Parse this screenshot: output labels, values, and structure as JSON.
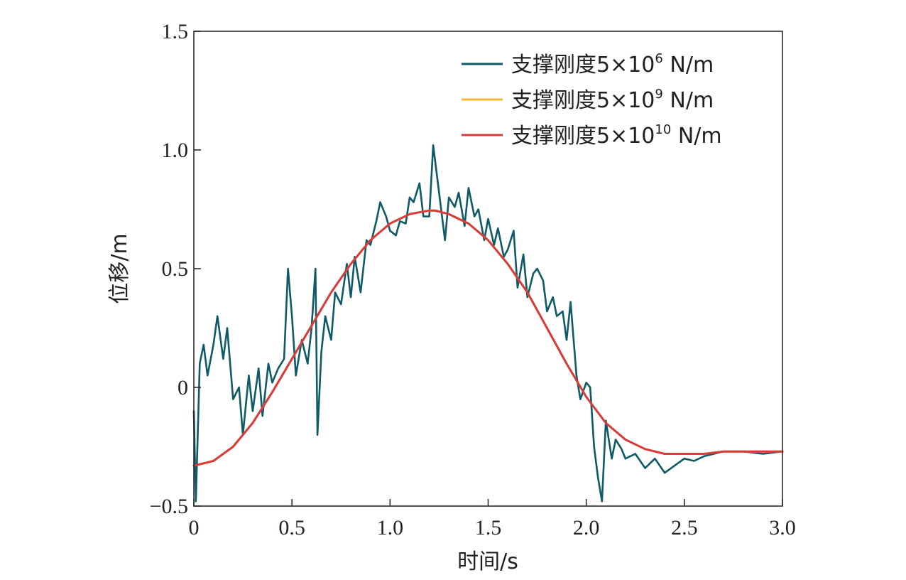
{
  "chart_data": {
    "type": "line",
    "xlabel": "时间/s",
    "ylabel": "位移/m",
    "xlim": [
      0,
      3.0
    ],
    "ylim": [
      -0.5,
      1.5
    ],
    "x_ticks": [
      0,
      0.5,
      1.0,
      1.5,
      2.0,
      2.5,
      3.0
    ],
    "x_tick_labels": [
      "0",
      "0.5",
      "1.0",
      "1.5",
      "2.0",
      "2.5",
      "3.0"
    ],
    "y_ticks": [
      -0.5,
      0,
      0.5,
      1.0,
      1.5
    ],
    "y_tick_labels": [
      "−0.5",
      "0",
      "0.5",
      "1.0",
      "1.5"
    ],
    "grid": false,
    "legend_position": "top-right",
    "series": [
      {
        "name_prefix": "支撑刚度5×10",
        "exponent": "6",
        "name_suffix": " N/m",
        "color": "#0e5a66",
        "x": [
          0,
          0.01,
          0.02,
          0.03,
          0.05,
          0.07,
          0.1,
          0.12,
          0.15,
          0.17,
          0.2,
          0.23,
          0.25,
          0.28,
          0.3,
          0.33,
          0.35,
          0.38,
          0.4,
          0.43,
          0.46,
          0.48,
          0.5,
          0.52,
          0.55,
          0.58,
          0.6,
          0.62,
          0.63,
          0.65,
          0.67,
          0.7,
          0.72,
          0.75,
          0.78,
          0.8,
          0.82,
          0.85,
          0.88,
          0.9,
          0.93,
          0.95,
          0.98,
          1.0,
          1.03,
          1.05,
          1.08,
          1.1,
          1.12,
          1.15,
          1.17,
          1.2,
          1.22,
          1.25,
          1.28,
          1.3,
          1.33,
          1.35,
          1.38,
          1.4,
          1.43,
          1.45,
          1.48,
          1.5,
          1.53,
          1.55,
          1.58,
          1.6,
          1.63,
          1.65,
          1.68,
          1.7,
          1.73,
          1.75,
          1.78,
          1.8,
          1.83,
          1.85,
          1.88,
          1.9,
          1.92,
          1.95,
          1.97,
          2.0,
          2.02,
          2.04,
          2.06,
          2.08,
          2.1,
          2.13,
          2.15,
          2.18,
          2.2,
          2.25,
          2.3,
          2.35,
          2.4,
          2.45,
          2.5,
          2.55,
          2.6,
          2.7,
          2.8,
          2.9,
          3.0
        ],
        "y": [
          -0.1,
          -0.48,
          -0.2,
          0.1,
          0.18,
          0.05,
          0.18,
          0.3,
          0.12,
          0.25,
          -0.05,
          0.0,
          -0.2,
          0.05,
          -0.1,
          0.08,
          -0.12,
          0.1,
          0.02,
          0.08,
          0.12,
          0.5,
          0.3,
          0.05,
          0.2,
          0.1,
          0.25,
          0.5,
          -0.2,
          0.15,
          0.3,
          0.2,
          0.4,
          0.35,
          0.52,
          0.38,
          0.55,
          0.4,
          0.62,
          0.6,
          0.7,
          0.78,
          0.72,
          0.66,
          0.64,
          0.7,
          0.69,
          0.8,
          0.78,
          0.86,
          0.72,
          0.72,
          1.02,
          0.82,
          0.62,
          0.8,
          0.76,
          0.82,
          0.68,
          0.84,
          0.72,
          0.75,
          0.62,
          0.71,
          0.6,
          0.67,
          0.55,
          0.58,
          0.66,
          0.42,
          0.56,
          0.38,
          0.48,
          0.5,
          0.45,
          0.32,
          0.38,
          0.3,
          0.32,
          0.2,
          0.36,
          0.05,
          -0.05,
          0.02,
          0.0,
          -0.25,
          -0.38,
          -0.48,
          -0.14,
          -0.3,
          -0.22,
          -0.26,
          -0.3,
          -0.28,
          -0.34,
          -0.3,
          -0.36,
          -0.33,
          -0.3,
          -0.31,
          -0.29,
          -0.27,
          -0.27,
          -0.28,
          -0.27
        ]
      },
      {
        "name_prefix": "支撑刚度5×10",
        "exponent": "9",
        "name_suffix": " N/m",
        "color": "#f6b535",
        "x": [
          0,
          0.1,
          0.2,
          0.3,
          0.4,
          0.5,
          0.6,
          0.7,
          0.8,
          0.9,
          1.0,
          1.1,
          1.2,
          1.23,
          1.3,
          1.4,
          1.5,
          1.6,
          1.7,
          1.8,
          1.9,
          2.0,
          2.1,
          2.2,
          2.3,
          2.4,
          2.5,
          2.6,
          2.7,
          2.8,
          2.9,
          3.0
        ],
        "y": [
          -0.33,
          -0.31,
          -0.25,
          -0.15,
          -0.02,
          0.12,
          0.26,
          0.4,
          0.52,
          0.62,
          0.69,
          0.73,
          0.745,
          0.745,
          0.73,
          0.69,
          0.62,
          0.52,
          0.4,
          0.25,
          0.1,
          -0.04,
          -0.15,
          -0.22,
          -0.26,
          -0.28,
          -0.28,
          -0.28,
          -0.27,
          -0.27,
          -0.27,
          -0.27
        ]
      },
      {
        "name_prefix": "支撑刚度5×10",
        "exponent": "10",
        "name_suffix": " N/m",
        "color": "#d83b3c",
        "x": [
          0,
          0.1,
          0.2,
          0.3,
          0.4,
          0.5,
          0.6,
          0.7,
          0.8,
          0.9,
          1.0,
          1.1,
          1.2,
          1.23,
          1.3,
          1.4,
          1.5,
          1.6,
          1.7,
          1.8,
          1.9,
          2.0,
          2.1,
          2.2,
          2.3,
          2.4,
          2.5,
          2.6,
          2.7,
          2.8,
          2.9,
          3.0
        ],
        "y": [
          -0.33,
          -0.31,
          -0.25,
          -0.15,
          -0.02,
          0.12,
          0.26,
          0.4,
          0.52,
          0.62,
          0.69,
          0.73,
          0.745,
          0.745,
          0.73,
          0.69,
          0.62,
          0.52,
          0.4,
          0.25,
          0.1,
          -0.04,
          -0.15,
          -0.22,
          -0.26,
          -0.28,
          -0.28,
          -0.28,
          -0.27,
          -0.27,
          -0.27,
          -0.27
        ]
      }
    ]
  }
}
